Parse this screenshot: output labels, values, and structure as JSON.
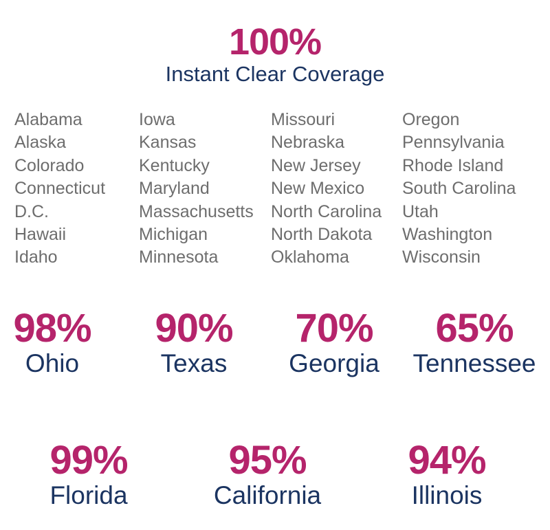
{
  "header": {
    "percent": "100%",
    "subtitle": "Instant Clear Coverage"
  },
  "states_full_coverage": {
    "col1": [
      "Alabama",
      "Alaska",
      "Colorado",
      "Connecticut",
      "D.C.",
      "Hawaii",
      "Idaho"
    ],
    "col2": [
      "Iowa",
      "Kansas",
      "Kentucky",
      "Maryland",
      "Massachusetts",
      "Michigan",
      "Minnesota"
    ],
    "col3": [
      "Missouri",
      "Nebraska",
      "New Jersey",
      "New Mexico",
      "North Carolina",
      "North Dakota",
      "Oklahoma"
    ],
    "col4": [
      "Oregon",
      "Pennsylvania",
      "Rhode Island",
      "South Carolina",
      "Utah",
      "Washington",
      "Wisconsin"
    ]
  },
  "partial_row1": [
    {
      "percent": "98%",
      "state": "Ohio"
    },
    {
      "percent": "90%",
      "state": "Texas"
    },
    {
      "percent": "70%",
      "state": "Georgia"
    },
    {
      "percent": "65%",
      "state": "Tennessee"
    }
  ],
  "partial_row2": [
    {
      "percent": "99%",
      "state": "Florida"
    },
    {
      "percent": "95%",
      "state": "California"
    },
    {
      "percent": "94%",
      "state": "Illinois"
    }
  ],
  "colors": {
    "accent": "#b5246b",
    "navy": "#1b3461",
    "gray_text": "#6d6d6d"
  }
}
